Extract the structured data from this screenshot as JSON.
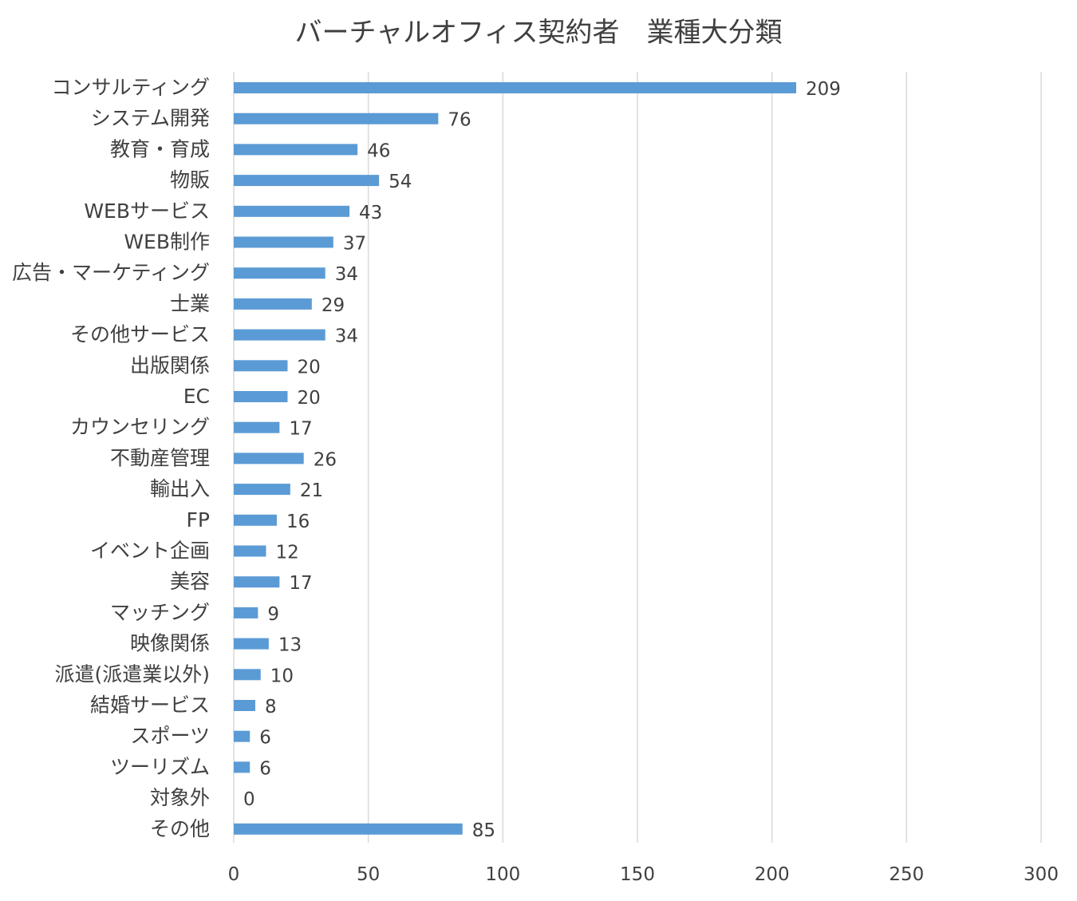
{
  "chart_data": {
    "type": "bar",
    "orientation": "horizontal",
    "title": "バーチャルオフィス契約者　業種大分類",
    "categories": [
      "コンサルティング",
      "システム開発",
      "教育・育成",
      "物販",
      "WEBサービス",
      "WEB制作",
      "広告・マーケティング",
      "士業",
      "その他サービス",
      "出版関係",
      "EC",
      "カウンセリング",
      "不動産管理",
      "輸出入",
      "FP",
      "イベント企画",
      "美容",
      "マッチング",
      "映像関係",
      "派遣(派遣業以外)",
      "結婚サービス",
      "スポーツ",
      "ツーリズム",
      "対象外",
      "その他"
    ],
    "values": [
      209,
      76,
      46,
      54,
      43,
      37,
      34,
      29,
      34,
      20,
      20,
      17,
      26,
      21,
      16,
      12,
      17,
      9,
      13,
      10,
      8,
      6,
      6,
      0,
      85
    ],
    "xlim": [
      0,
      300
    ],
    "xticks": [
      0,
      50,
      100,
      150,
      200,
      250,
      300
    ],
    "grid": "vertical",
    "data_labels": true,
    "legend": "none",
    "colors": {
      "bar": "#5b9bd5",
      "grid": "#d9d9d9",
      "text": "#404040",
      "title": "#404040"
    }
  }
}
